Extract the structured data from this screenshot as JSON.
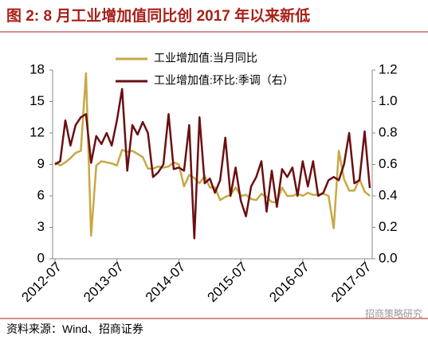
{
  "chart_data": {
    "type": "line",
    "title": "图 2:  8 月工业增加值同比创 2017 年以来新低",
    "source": "资料来源：Wind、招商证券",
    "watermark": "招商策略研究",
    "categories": [
      "2012-07",
      null,
      null,
      null,
      null,
      null,
      null,
      null,
      null,
      null,
      null,
      null,
      "2013-07",
      null,
      null,
      null,
      null,
      null,
      null,
      null,
      null,
      null,
      null,
      null,
      "2014-07",
      null,
      null,
      null,
      null,
      null,
      null,
      null,
      null,
      null,
      null,
      null,
      "2015-07",
      null,
      null,
      null,
      null,
      null,
      null,
      null,
      null,
      null,
      null,
      null,
      "2016-07",
      null,
      null,
      null,
      null,
      null,
      null,
      null,
      null,
      null,
      null,
      null,
      "2017-07",
      null
    ],
    "series": [
      {
        "name": "工业增加值:当月同比",
        "color": "#c8a845",
        "axis": "y",
        "values": [
          9.2,
          8.9,
          9.2,
          9.6,
          10.1,
          10.3,
          17.7,
          2.2,
          8.9,
          9.3,
          9.2,
          9.1,
          8.9,
          10.4,
          10.2,
          10.3,
          10.0,
          9.7,
          8.6,
          8.6,
          8.8,
          8.7,
          8.8,
          9.2,
          9.0,
          6.9,
          8.0,
          7.7,
          7.2,
          7.9,
          6.8,
          6.8,
          5.6,
          5.9,
          6.1,
          6.8,
          6.0,
          6.1,
          5.7,
          5.6,
          6.2,
          5.9,
          5.4,
          5.4,
          6.8,
          6.0,
          6.0,
          6.2,
          6.0,
          6.3,
          6.1,
          6.1,
          6.2,
          6.0,
          2.9,
          10.3,
          7.6,
          6.5,
          6.5,
          7.6,
          6.4,
          6.0
        ]
      },
      {
        "name": "工业增加值:环比:季调（右）",
        "color": "#6b0f12",
        "axis": "y2",
        "values": [
          0.6,
          0.62,
          0.88,
          0.72,
          0.85,
          0.9,
          0.92,
          0.61,
          0.78,
          0.73,
          0.8,
          0.72,
          0.88,
          1.08,
          0.56,
          0.85,
          0.79,
          0.87,
          0.8,
          0.52,
          0.55,
          0.6,
          0.92,
          0.57,
          0.58,
          0.56,
          0.85,
          0.13,
          0.9,
          0.48,
          0.51,
          0.42,
          0.5,
          0.77,
          0.4,
          0.58,
          0.37,
          0.27,
          0.46,
          0.52,
          0.62,
          0.3,
          0.56,
          0.33,
          0.57,
          0.52,
          0.58,
          0.4,
          0.62,
          0.46,
          0.62,
          0.4,
          0.42,
          0.5,
          0.52,
          0.5,
          0.6,
          0.8,
          0.48,
          0.5,
          0.81,
          0.45
        ]
      }
    ],
    "ylim": [
      0,
      18
    ],
    "yticks": [
      0,
      3,
      6,
      9,
      12,
      15,
      18
    ],
    "y2lim": [
      0,
      1.2
    ],
    "y2ticks": [
      {
        "value": 0,
        "label": "0.0"
      },
      0.2,
      0.4,
      0.6,
      0.8,
      {
        "value": 1,
        "label": "1.0"
      },
      1.2
    ],
    "legend": "top"
  }
}
